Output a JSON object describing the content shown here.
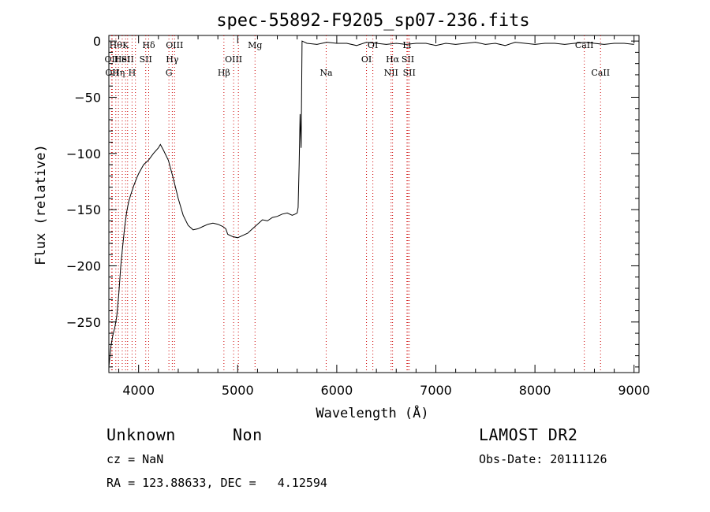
{
  "chart_data": {
    "type": "line",
    "title": "spec-55892-F9205_sp07-236.fits",
    "xlabel": "Wavelength (Å)",
    "ylabel": "Flux (relative)",
    "xlim": [
      3700,
      9050
    ],
    "ylim": [
      -295,
      5
    ],
    "xticks": [
      {
        "value": 4000,
        "label": "4000"
      },
      {
        "value": 5000,
        "label": "5000"
      },
      {
        "value": 6000,
        "label": "6000"
      },
      {
        "value": 7000,
        "label": "7000"
      },
      {
        "value": 8000,
        "label": "8000"
      },
      {
        "value": 9000,
        "label": "9000"
      }
    ],
    "yticks": [
      {
        "value": 0,
        "label": "0"
      },
      {
        "value": -50,
        "label": "−50"
      },
      {
        "value": -100,
        "label": "−100"
      },
      {
        "value": -150,
        "label": "−150"
      },
      {
        "value": -200,
        "label": "−200"
      },
      {
        "value": -250,
        "label": "−250"
      }
    ],
    "grid": false,
    "line_color": "#000000",
    "marker_line_color": "#cc0000",
    "series": [
      {
        "x": [
          3700,
          3720,
          3740,
          3760,
          3780,
          3800,
          3820,
          3840,
          3860,
          3880,
          3900,
          3920,
          3950,
          3980,
          4000,
          4050,
          4100,
          4150,
          4200,
          4220,
          4250,
          4300,
          4350,
          4400,
          4450,
          4500,
          4550,
          4600,
          4650,
          4700,
          4750,
          4800,
          4850,
          4880,
          4900,
          4950,
          5000,
          5050,
          5100,
          5150,
          5200,
          5250,
          5300,
          5350,
          5400,
          5450,
          5500,
          5550,
          5580,
          5600,
          5610,
          5620,
          5630,
          5640,
          5650,
          5700,
          5800,
          5900,
          6000,
          6100,
          6200,
          6300,
          6400,
          6500,
          6600,
          6700,
          6800,
          6900,
          7000,
          7100,
          7200,
          7300,
          7400,
          7500,
          7600,
          7700,
          7800,
          7900,
          8000,
          8100,
          8200,
          8300,
          8400,
          8500,
          8600,
          8700,
          8800,
          8900,
          9000
        ],
        "y": [
          -290,
          -272,
          -262,
          -255,
          -245,
          -225,
          -200,
          -182,
          -165,
          -152,
          -143,
          -137,
          -129,
          -122,
          -118,
          -110,
          -106,
          -100,
          -95,
          -92,
          -97,
          -106,
          -122,
          -140,
          -155,
          -164,
          -168,
          -167,
          -165,
          -163,
          -162,
          -163,
          -165,
          -167,
          -172,
          -174,
          -175,
          -173,
          -171,
          -167,
          -163,
          -159,
          -160,
          -157,
          -156,
          -154,
          -153,
          -155,
          -154,
          -153,
          -148,
          -110,
          -65,
          -95,
          0,
          -2,
          -3,
          -1,
          -2,
          -2,
          -4,
          -1,
          -2,
          -3,
          -2,
          -3,
          -2,
          -2,
          -4,
          -2,
          -3,
          -2,
          -1,
          -3,
          -2,
          -4,
          -1,
          -2,
          -3,
          -2,
          -2,
          -3,
          -2,
          -1,
          -2,
          -3,
          -2,
          -2,
          -3
        ]
      }
    ],
    "line_markers": [
      {
        "x": 3727,
        "label": "OII",
        "row": 2
      },
      {
        "x": 3734,
        "label": "OII",
        "row": 3
      },
      {
        "x": 3770,
        "label": "Hθ",
        "row": 1
      },
      {
        "x": 3797,
        "label": "Hη",
        "row": 3
      },
      {
        "x": 3835,
        "label": "HeI",
        "row": 2
      },
      {
        "x": 3869,
        "label": "K",
        "row": 1
      },
      {
        "x": 3889,
        "label": "SII",
        "row": 2
      },
      {
        "x": 3934,
        "label": "H",
        "row": 3
      },
      {
        "x": 3968,
        "label": "",
        "row": 0
      },
      {
        "x": 4072,
        "label": "SII",
        "row": 2
      },
      {
        "x": 4102,
        "label": "Hδ",
        "row": 1
      },
      {
        "x": 4306,
        "label": "G",
        "row": 3
      },
      {
        "x": 4340,
        "label": "Hγ",
        "row": 2
      },
      {
        "x": 4363,
        "label": "OIII",
        "row": 1
      },
      {
        "x": 4861,
        "label": "Hβ",
        "row": 3
      },
      {
        "x": 4959,
        "label": "OIII",
        "row": 2
      },
      {
        "x": 5007,
        "label": "",
        "row": 0
      },
      {
        "x": 5175,
        "label": "Mg",
        "row": 1
      },
      {
        "x": 5893,
        "label": "Na",
        "row": 3
      },
      {
        "x": 6300,
        "label": "OI",
        "row": 2
      },
      {
        "x": 6364,
        "label": "OI",
        "row": 1
      },
      {
        "x": 6548,
        "label": "NII",
        "row": 3
      },
      {
        "x": 6563,
        "label": "Hα",
        "row": 2
      },
      {
        "x": 6708,
        "label": "Li",
        "row": 1
      },
      {
        "x": 6717,
        "label": "SII",
        "row": 2
      },
      {
        "x": 6731,
        "label": "SII",
        "row": 3
      },
      {
        "x": 8498,
        "label": "CaII",
        "row": 1
      },
      {
        "x": 8662,
        "label": "CaII",
        "row": 3
      }
    ]
  },
  "info": {
    "class": "Unknown",
    "subclass": "Non",
    "survey": "LAMOST DR2",
    "cz": "cz = NaN",
    "obs_date": "Obs-Date: 20111126",
    "radec": "RA = 123.88633, DEC =   4.12594"
  }
}
